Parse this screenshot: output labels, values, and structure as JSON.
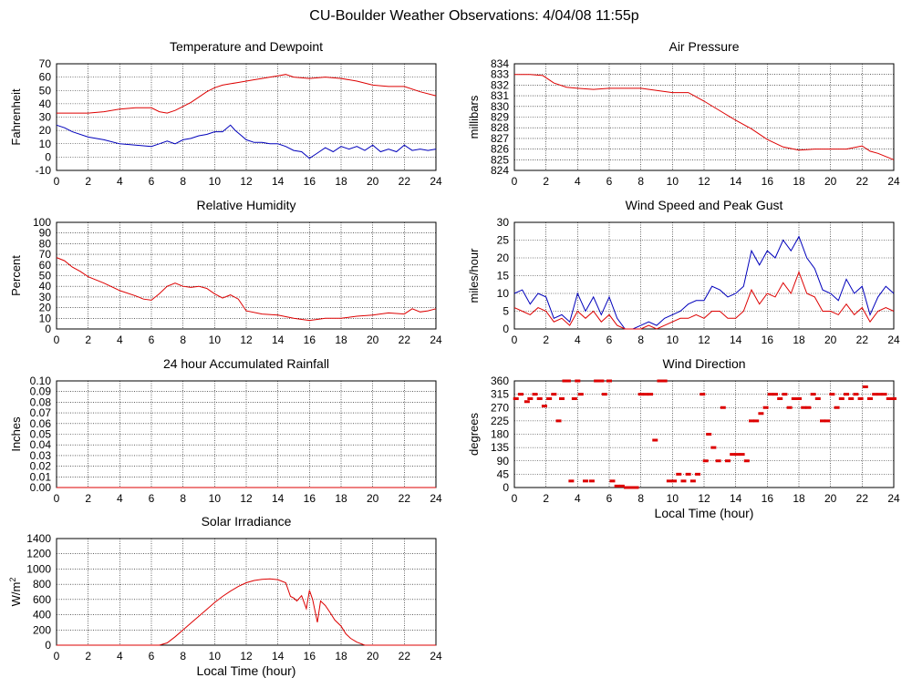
{
  "page_title": "CU-Boulder Weather Observations: 4/04/08 11:55p",
  "colors": {
    "red": "#dd0000",
    "blue": "#0000bb",
    "grid": "#000000",
    "frame": "#000000"
  },
  "chart_data": [
    {
      "id": "temp",
      "type": "line",
      "title": "Temperature and Dewpoint",
      "xlabel": "",
      "ylabel": "Fahrenheit",
      "xlim": [
        0,
        24
      ],
      "ylim": [
        -10,
        70
      ],
      "x_ticks": [
        "0",
        "2",
        "4",
        "6",
        "8",
        "10",
        "12",
        "14",
        "16",
        "18",
        "20",
        "22",
        "24"
      ],
      "y_ticks": [
        "-10",
        "0",
        "10",
        "20",
        "30",
        "40",
        "50",
        "60",
        "70"
      ],
      "series": [
        {
          "color": "#dd0000",
          "x": [
            0,
            1,
            2,
            3,
            4,
            5,
            6,
            6.5,
            7,
            7.5,
            8,
            8.5,
            9,
            9.5,
            10,
            10.5,
            11,
            11.5,
            12,
            12.5,
            13,
            13.5,
            14,
            14.5,
            15,
            16,
            17,
            18,
            19,
            20,
            21,
            22,
            23,
            24
          ],
          "y": [
            33,
            33,
            33,
            34,
            36,
            37,
            37,
            34,
            33,
            35,
            38,
            41,
            45,
            49,
            52,
            54,
            55,
            56,
            57,
            58,
            59,
            60,
            61,
            62,
            60,
            59,
            60,
            59,
            57,
            54,
            53,
            53,
            49,
            46
          ]
        },
        {
          "color": "#0000bb",
          "x": [
            0,
            0.5,
            1,
            2,
            3,
            4,
            5,
            6,
            6.5,
            7,
            7.5,
            8,
            8.5,
            9,
            9.5,
            10,
            10.5,
            11,
            11.3,
            11.6,
            12,
            12.5,
            13,
            13.5,
            14,
            14.5,
            15,
            15.5,
            16,
            16.5,
            17,
            17.5,
            18,
            18.5,
            19,
            19.5,
            20,
            20.5,
            21,
            21.5,
            22,
            22.5,
            23,
            23.5,
            24
          ],
          "y": [
            24,
            22,
            19,
            15,
            13,
            10,
            9,
            8,
            10,
            12,
            10,
            13,
            14,
            16,
            17,
            19,
            19,
            24,
            20,
            17,
            13,
            11,
            11,
            10,
            10,
            8,
            5,
            4,
            -1,
            3,
            7,
            4,
            8,
            6,
            8,
            5,
            9,
            4,
            6,
            4,
            9,
            5,
            6,
            5,
            6
          ]
        }
      ]
    },
    {
      "id": "pressure",
      "type": "line",
      "title": "Air Pressure",
      "xlabel": "",
      "ylabel": "millibars",
      "xlim": [
        0,
        24
      ],
      "ylim": [
        824,
        834
      ],
      "x_ticks": [
        "0",
        "2",
        "4",
        "6",
        "8",
        "10",
        "12",
        "14",
        "16",
        "18",
        "20",
        "22",
        "24"
      ],
      "y_ticks": [
        "824",
        "825",
        "826",
        "827",
        "828",
        "829",
        "830",
        "831",
        "832",
        "833",
        "834"
      ],
      "series": [
        {
          "color": "#dd0000",
          "x": [
            0,
            1,
            1.8,
            2.5,
            3.3,
            4,
            5,
            6,
            7,
            8,
            9,
            10,
            11,
            12,
            13,
            14,
            15,
            16,
            17,
            18,
            19,
            20,
            21,
            22,
            22.5,
            23,
            24
          ],
          "y": [
            833,
            833,
            832.9,
            832.2,
            831.8,
            831.7,
            831.6,
            831.7,
            831.7,
            831.7,
            831.5,
            831.3,
            831.3,
            830.5,
            829.6,
            828.7,
            827.9,
            826.9,
            826.2,
            825.9,
            826,
            826,
            826,
            826.3,
            825.8,
            825.6,
            825
          ]
        }
      ]
    },
    {
      "id": "humidity",
      "type": "line",
      "title": "Relative Humidity",
      "xlabel": "",
      "ylabel": "Percent",
      "xlim": [
        0,
        24
      ],
      "ylim": [
        0,
        100
      ],
      "x_ticks": [
        "0",
        "2",
        "4",
        "6",
        "8",
        "10",
        "12",
        "14",
        "16",
        "18",
        "20",
        "22",
        "24"
      ],
      "y_ticks": [
        "0",
        "10",
        "20",
        "30",
        "40",
        "50",
        "60",
        "70",
        "80",
        "90",
        "100"
      ],
      "series": [
        {
          "color": "#dd0000",
          "x": [
            0,
            0.5,
            1,
            1.5,
            2,
            3,
            4,
            5,
            5.5,
            6,
            6.5,
            7,
            7.5,
            8,
            8.5,
            9,
            9.5,
            10,
            10.5,
            11,
            11.5,
            12,
            13,
            14,
            15,
            15.5,
            16,
            16.5,
            17,
            18,
            19,
            20,
            21,
            22,
            22.5,
            23,
            23.5,
            24
          ],
          "y": [
            67,
            64,
            58,
            54,
            49,
            43,
            36,
            31,
            28,
            27,
            33,
            40,
            43,
            40,
            39,
            40,
            38,
            33,
            29,
            32,
            28,
            17,
            14,
            13,
            10,
            9,
            8,
            9,
            10,
            10,
            12,
            13,
            15,
            14,
            19,
            16,
            17,
            19
          ]
        }
      ]
    },
    {
      "id": "wind",
      "type": "line",
      "title": "Wind Speed and Peak Gust",
      "xlabel": "",
      "ylabel": "miles/hour",
      "xlim": [
        0,
        24
      ],
      "ylim": [
        0,
        30
      ],
      "x_ticks": [
        "0",
        "2",
        "4",
        "6",
        "8",
        "10",
        "12",
        "14",
        "16",
        "18",
        "20",
        "22",
        "24"
      ],
      "y_ticks": [
        "0",
        "5",
        "10",
        "15",
        "20",
        "25",
        "30"
      ],
      "series": [
        {
          "color": "#0000bb",
          "x": [
            0,
            0.5,
            1,
            1.5,
            2,
            2.5,
            3,
            3.5,
            4,
            4.5,
            5,
            5.5,
            6,
            6.5,
            7,
            7.5,
            8,
            8.5,
            9,
            9.5,
            10,
            10.5,
            11,
            11.5,
            12,
            12.5,
            13,
            13.5,
            14,
            14.5,
            15,
            15.5,
            16,
            16.5,
            17,
            17.5,
            18,
            18.5,
            19,
            19.5,
            20,
            20.5,
            21,
            21.5,
            22,
            22.5,
            23,
            23.5,
            24
          ],
          "y": [
            10,
            11,
            7,
            10,
            9,
            3,
            4,
            2,
            10,
            5,
            9,
            4,
            9,
            3,
            0,
            0,
            1,
            2,
            1,
            3,
            4,
            5,
            7,
            8,
            8,
            12,
            11,
            9,
            10,
            12,
            22,
            18,
            22,
            20,
            25,
            22,
            26,
            20,
            17,
            11,
            10,
            8,
            14,
            10,
            12,
            4,
            9,
            12,
            10
          ]
        },
        {
          "color": "#dd0000",
          "x": [
            0,
            0.5,
            1,
            1.5,
            2,
            2.5,
            3,
            3.5,
            4,
            4.5,
            5,
            5.5,
            6,
            6.5,
            7,
            7.5,
            8,
            8.5,
            9,
            9.5,
            10,
            10.5,
            11,
            11.5,
            12,
            12.5,
            13,
            13.5,
            14,
            14.5,
            15,
            15.5,
            16,
            16.5,
            17,
            17.5,
            18,
            18.5,
            19,
            19.5,
            20,
            20.5,
            21,
            21.5,
            22,
            22.5,
            23,
            23.5,
            24
          ],
          "y": [
            6,
            5,
            4,
            6,
            5,
            2,
            3,
            1,
            5,
            3,
            5,
            2,
            4,
            1,
            0,
            0,
            0,
            1,
            0,
            1,
            2,
            3,
            3,
            4,
            3,
            5,
            5,
            3,
            3,
            5,
            11,
            7,
            10,
            9,
            13,
            10,
            16,
            10,
            9,
            5,
            5,
            4,
            7,
            4,
            6,
            2,
            5,
            6,
            5
          ]
        }
      ]
    },
    {
      "id": "rain",
      "type": "line",
      "title": "24 hour Accumulated Rainfall",
      "xlabel": "",
      "ylabel": "Inches",
      "xlim": [
        0,
        24
      ],
      "ylim": [
        0,
        0.1
      ],
      "x_ticks": [
        "0",
        "2",
        "4",
        "6",
        "8",
        "10",
        "12",
        "14",
        "16",
        "18",
        "20",
        "22",
        "24"
      ],
      "y_ticks": [
        "0.00",
        "0.01",
        "0.02",
        "0.03",
        "0.04",
        "0.05",
        "0.06",
        "0.07",
        "0.08",
        "0.09",
        "0.10"
      ],
      "series": [
        {
          "color": "#dd0000",
          "x": [
            0,
            24
          ],
          "y": [
            0,
            0
          ]
        }
      ]
    },
    {
      "id": "direction",
      "type": "scatter",
      "title": "Wind Direction",
      "xlabel": "Local Time (hour)",
      "ylabel": "degrees",
      "xlim": [
        0,
        24
      ],
      "ylim": [
        0,
        360
      ],
      "x_ticks": [
        "0",
        "2",
        "4",
        "6",
        "8",
        "10",
        "12",
        "14",
        "16",
        "18",
        "20",
        "22",
        "24"
      ],
      "y_ticks": [
        "0",
        "45",
        "90",
        "135",
        "180",
        "225",
        "270",
        "315",
        "360"
      ],
      "series": [
        {
          "color": "#dd0000",
          "x": [
            0.1,
            0.4,
            0.8,
            1.0,
            1.3,
            1.6,
            1.9,
            2.2,
            2.5,
            2.8,
            3.0,
            3.2,
            3.4,
            3.6,
            3.8,
            4.0,
            4.2,
            4.5,
            4.9,
            5.2,
            5.5,
            5.7,
            6.0,
            6.2,
            6.5,
            6.8,
            7.1,
            7.4,
            7.7,
            8.0,
            8.3,
            8.6,
            8.9,
            9.2,
            9.5,
            9.8,
            10.1,
            10.4,
            10.7,
            11.0,
            11.3,
            11.6,
            11.9,
            12.1,
            12.3,
            12.6,
            12.9,
            13.2,
            13.5,
            13.8,
            14.1,
            14.4,
            14.7,
            15.0,
            15.3,
            15.6,
            15.9,
            16.2,
            16.5,
            16.8,
            17.1,
            17.4,
            17.7,
            18.0,
            18.3,
            18.6,
            18.9,
            19.2,
            19.5,
            19.8,
            20.1,
            20.4,
            20.7,
            21.0,
            21.3,
            21.6,
            21.9,
            22.2,
            22.5,
            22.8,
            23.1,
            23.4,
            23.7,
            24.0
          ],
          "y": [
            300,
            315,
            290,
            300,
            315,
            300,
            275,
            300,
            315,
            225,
            300,
            360,
            360,
            22,
            300,
            360,
            315,
            22,
            22,
            360,
            360,
            315,
            360,
            22,
            5,
            5,
            0,
            0,
            0,
            315,
            315,
            315,
            160,
            360,
            360,
            22,
            22,
            45,
            22,
            45,
            22,
            45,
            315,
            90,
            180,
            135,
            90,
            270,
            90,
            112,
            112,
            112,
            90,
            225,
            225,
            250,
            270,
            315,
            315,
            300,
            315,
            270,
            300,
            300,
            270,
            270,
            315,
            300,
            225,
            225,
            315,
            270,
            300,
            315,
            300,
            315,
            300,
            340,
            300,
            315,
            315,
            315,
            300,
            300
          ]
        }
      ]
    },
    {
      "id": "solar",
      "type": "line",
      "title": "Solar Irradiance",
      "xlabel": "Local Time (hour)",
      "ylabel": "W/m",
      "ylabel_sup": "2",
      "xlim": [
        0,
        24
      ],
      "ylim": [
        0,
        1400
      ],
      "x_ticks": [
        "0",
        "2",
        "4",
        "6",
        "8",
        "10",
        "12",
        "14",
        "16",
        "18",
        "20",
        "22",
        "24"
      ],
      "y_ticks": [
        "0",
        "200",
        "400",
        "600",
        "800",
        "1000",
        "1200",
        "1400"
      ],
      "series": [
        {
          "color": "#dd0000",
          "x": [
            0,
            6.5,
            7,
            7.5,
            8,
            8.5,
            9,
            9.5,
            10,
            10.5,
            11,
            11.5,
            12,
            12.5,
            13,
            13.5,
            14,
            14.5,
            14.8,
            15.0,
            15.2,
            15.5,
            15.8,
            16.0,
            16.2,
            16.5,
            16.7,
            17.0,
            17.3,
            17.6,
            18.0,
            18.3,
            18.6,
            19.0,
            19.5,
            24
          ],
          "y": [
            0,
            0,
            30,
            110,
            200,
            290,
            380,
            470,
            560,
            640,
            710,
            770,
            820,
            850,
            865,
            870,
            860,
            820,
            640,
            620,
            580,
            650,
            480,
            720,
            600,
            300,
            580,
            520,
            430,
            330,
            250,
            150,
            90,
            40,
            0,
            0
          ]
        }
      ]
    }
  ]
}
